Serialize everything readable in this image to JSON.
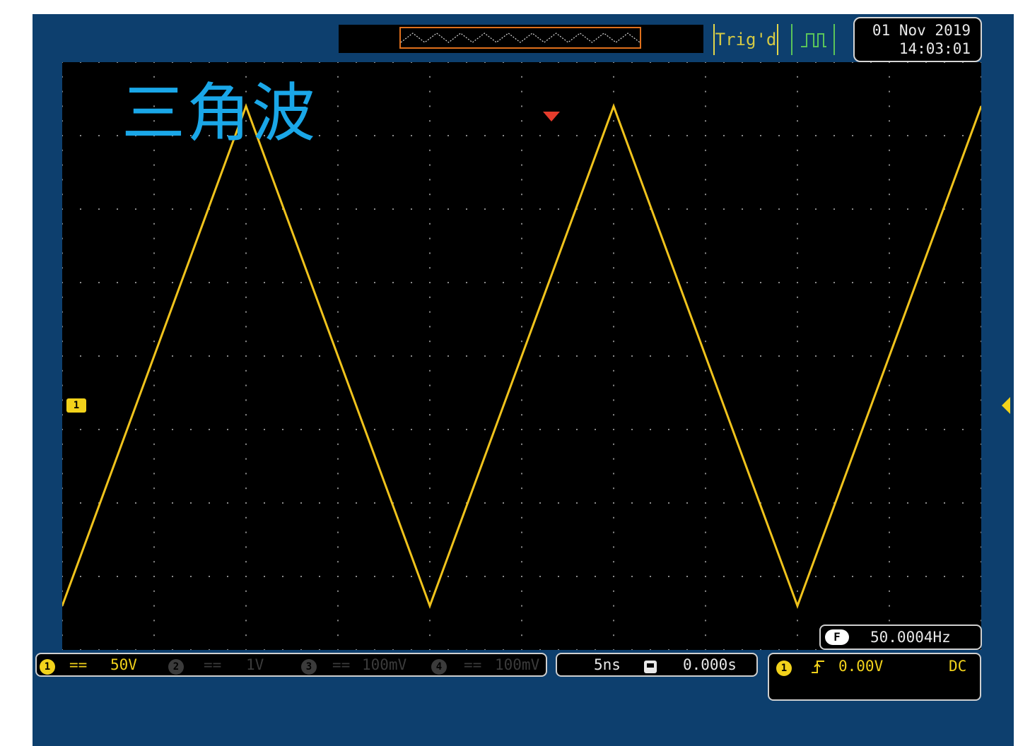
{
  "title": "三角波",
  "status": {
    "trigger_state": "Trig'd",
    "date": "01 Nov 2019",
    "time": "14:03:01"
  },
  "channels": [
    {
      "number": "1",
      "coupling": "==",
      "scale": "50V",
      "color": "#f2d21b"
    },
    {
      "number": "2",
      "coupling": "==",
      "scale": "1V",
      "color": "#3b3b3b"
    },
    {
      "number": "3",
      "coupling": "==",
      "scale": "100mV",
      "color": "#3b3b3b"
    },
    {
      "number": "4",
      "coupling": "==",
      "scale": "100mV",
      "color": "#3b3b3b"
    }
  ],
  "timebase": {
    "scale": "5ns",
    "icon": "horizontal-position-icon",
    "position": "0.000s"
  },
  "trigger": {
    "source": "1",
    "slope_icon": "rising-edge-icon",
    "level": "0.00V",
    "coupling": "DC"
  },
  "measurement": {
    "badge": "F",
    "frequency": "50.0004Hz"
  },
  "markers": {
    "ch1_ground": "1"
  },
  "chart_data": {
    "type": "line",
    "grid_divisions": {
      "x": 10,
      "y": 8
    },
    "xlim": [
      0,
      10
    ],
    "ylim": [
      -4,
      4
    ],
    "series": [
      {
        "color": "#f0c31c",
        "x": [
          0,
          2,
          4,
          6,
          8,
          10
        ],
        "y": [
          -3.4,
          3.4,
          -3.4,
          3.4,
          -3.4,
          3.4
        ]
      }
    ],
    "grid": true
  },
  "colors": {
    "frame": "#0d3f6e",
    "screen": "#000000",
    "trace": "#f0c31c",
    "title": "#1aa7e8"
  }
}
